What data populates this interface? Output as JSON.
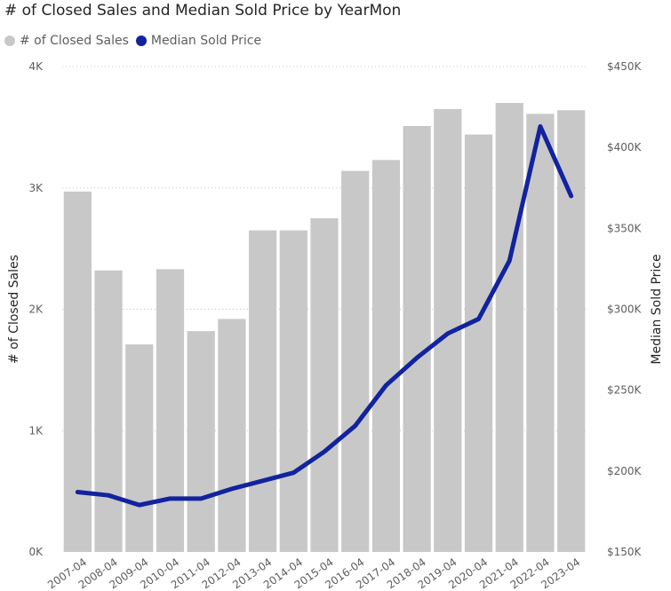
{
  "chart_data": {
    "type": "bar+line",
    "title": "# of Closed Sales and Median Sold Price by YearMon",
    "categories": [
      "2007-04",
      "2008-04",
      "2009-04",
      "2010-04",
      "2011-04",
      "2012-04",
      "2013-04",
      "2014-04",
      "2015-04",
      "2016-04",
      "2017-04",
      "2018-04",
      "2019-04",
      "2020-04",
      "2021-04",
      "2022-04",
      "2023-04"
    ],
    "series": [
      {
        "name": "# of Closed Sales",
        "type": "bar",
        "axis": "left",
        "color": "#c8c8c8",
        "values": [
          2970,
          2320,
          1710,
          2330,
          1820,
          1920,
          2650,
          2650,
          2750,
          3140,
          3230,
          3510,
          3650,
          3440,
          3700,
          3610,
          3640
        ]
      },
      {
        "name": "Median Sold Price",
        "type": "line",
        "axis": "right",
        "color": "#12239e",
        "values": [
          187,
          185,
          179,
          183,
          183,
          189,
          194,
          199,
          212,
          228,
          253,
          270,
          285,
          294,
          330,
          413,
          370
        ]
      }
    ],
    "y_left": {
      "label": "# of Closed Sales",
      "ylim": [
        0,
        4000
      ],
      "ticks": [
        0,
        1000,
        2000,
        3000,
        4000
      ],
      "tick_labels": [
        "0K",
        "1K",
        "2K",
        "3K",
        "4K"
      ]
    },
    "y_right": {
      "label": "Median Sold Price",
      "ylim": [
        150,
        450
      ],
      "ticks": [
        150,
        200,
        250,
        300,
        350,
        400,
        450
      ],
      "tick_labels": [
        "$150K",
        "$200K",
        "$250K",
        "$300K",
        "$350K",
        "$400K",
        "$450K"
      ]
    },
    "grid": true,
    "legend": "top-left"
  }
}
